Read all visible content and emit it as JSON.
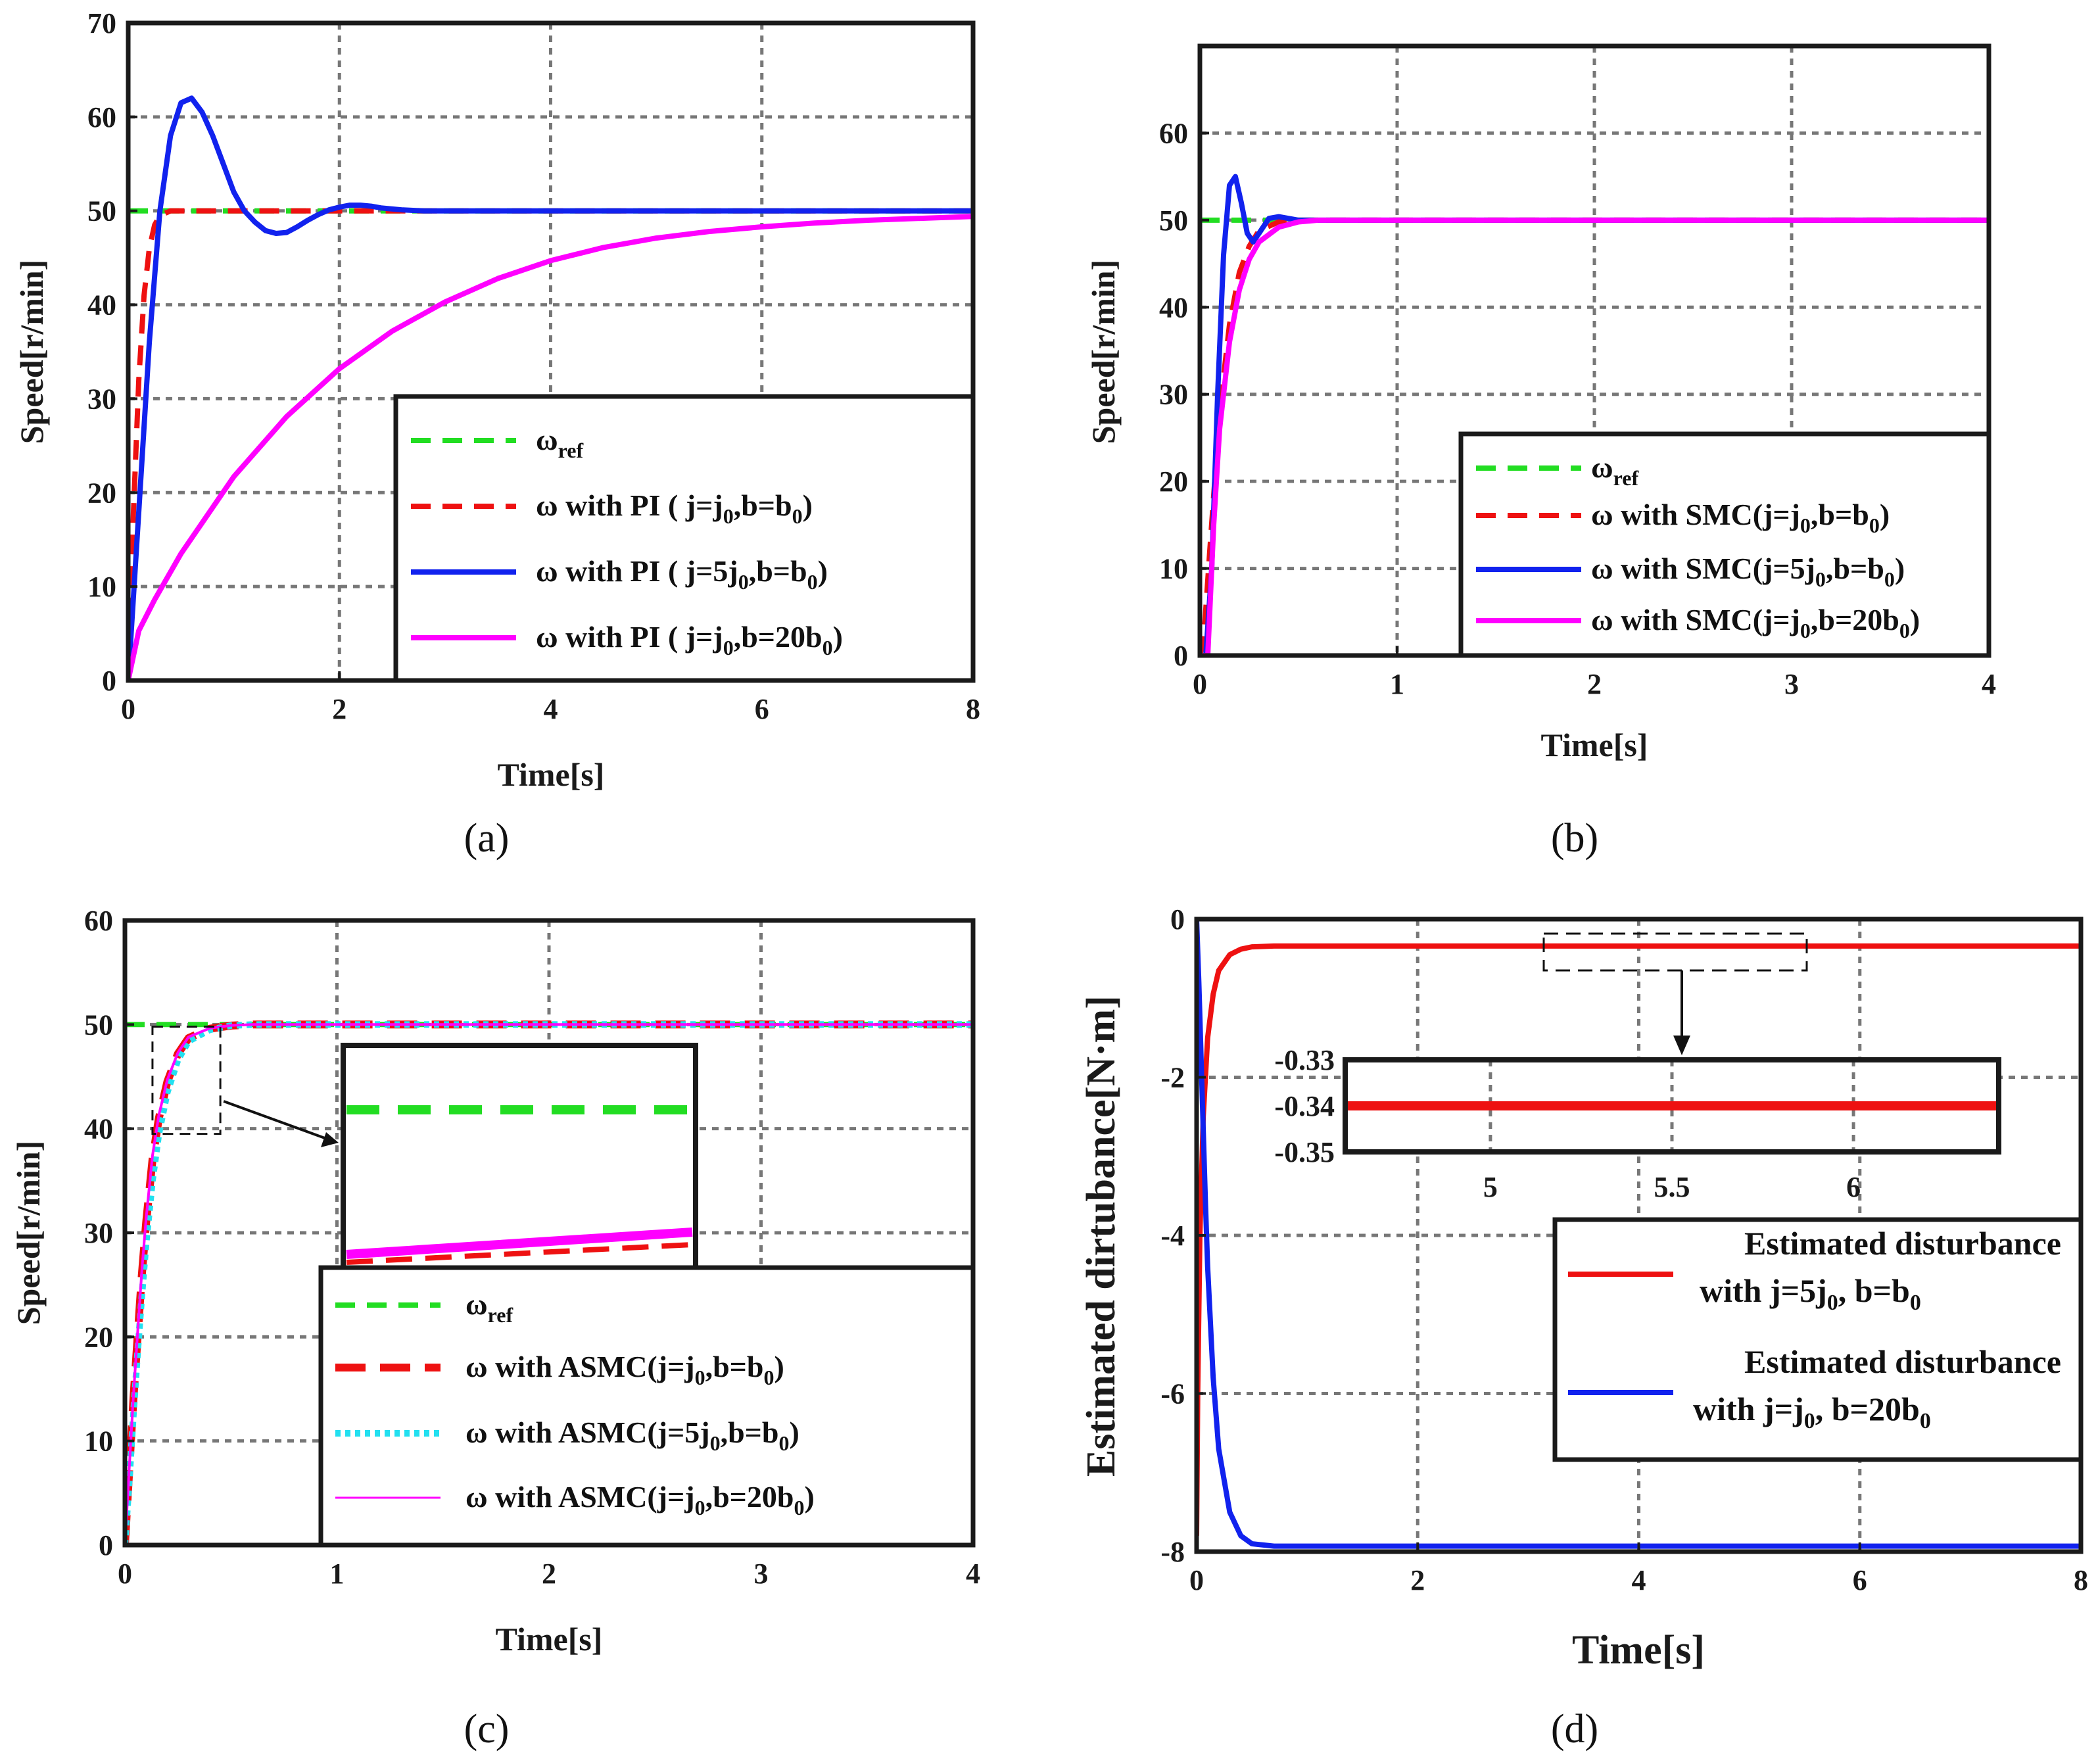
{
  "figure": {
    "captions": [
      "(a)",
      "(b)",
      "(c)",
      "(d)"
    ]
  },
  "colors": {
    "green": "#22dd22",
    "red": "#ee1111",
    "blue": "#1122ee",
    "magenta": "#ff00ff",
    "cyan": "#22e0f0",
    "axis": "#1a1a1a",
    "grid": "#777777"
  },
  "chart_data": [
    {
      "id": "a",
      "type": "line",
      "xlabel": "Time[s]",
      "ylabel": "Speed[r/min]",
      "xlim": [
        0,
        8
      ],
      "ylim": [
        0,
        70
      ],
      "xticks": [
        0,
        2,
        4,
        6,
        8
      ],
      "yticks": [
        0,
        10,
        20,
        30,
        40,
        50,
        60,
        70
      ],
      "grid": true,
      "legend_placement": "lower-right",
      "series": [
        {
          "name": "ω_ref",
          "legend": [
            "ω",
            "ref",
            ""
          ],
          "color": "#22dd22",
          "style": "dashed",
          "x": [
            0,
            8
          ],
          "y": [
            50,
            50
          ]
        },
        {
          "name": "ω with PI ( j=j0,b=b0)",
          "legend": [
            "ω with PI ( j=j",
            "0",
            ",b=b",
            "0",
            ")"
          ],
          "color": "#ee1111",
          "style": "dashed",
          "x": [
            0,
            0.05,
            0.1,
            0.15,
            0.2,
            0.25,
            0.3,
            0.4,
            0.5,
            0.6,
            1.0,
            8
          ],
          "y": [
            0,
            18,
            32,
            41,
            46,
            48.5,
            49.5,
            50,
            50,
            50,
            50,
            50
          ]
        },
        {
          "name": "ω with PI ( j=5j0,b=b0)",
          "legend": [
            "ω with PI ( j=5j",
            "0",
            ",b=b",
            "0",
            ")"
          ],
          "color": "#1122ee",
          "style": "solid",
          "x": [
            0,
            0.1,
            0.2,
            0.3,
            0.4,
            0.5,
            0.6,
            0.7,
            0.8,
            0.9,
            1.0,
            1.1,
            1.2,
            1.3,
            1.4,
            1.5,
            1.6,
            1.7,
            1.8,
            1.9,
            2.0,
            2.1,
            2.2,
            2.3,
            2.4,
            2.6,
            2.8,
            3.0,
            4.0,
            8
          ],
          "y": [
            0,
            18,
            36,
            50,
            58,
            61.5,
            62,
            60.5,
            58,
            55,
            52,
            50,
            48.8,
            47.9,
            47.6,
            47.7,
            48.3,
            49.0,
            49.6,
            50.1,
            50.4,
            50.6,
            50.6,
            50.5,
            50.3,
            50.1,
            50.0,
            50.0,
            50.0,
            50.0
          ]
        },
        {
          "name": "ω with PI ( j=j0,b=20b0)",
          "legend": [
            "ω with PI ( j=j",
            "0",
            ",b=20b",
            "0",
            ")"
          ],
          "color": "#ff00ff",
          "style": "solid",
          "x": [
            0,
            0.1,
            0.25,
            0.5,
            1.0,
            1.5,
            2.0,
            2.5,
            3.0,
            3.5,
            4.0,
            4.5,
            5.0,
            5.5,
            6.0,
            6.5,
            7.0,
            7.5,
            8.0
          ],
          "y": [
            0,
            5.3,
            8.6,
            13.5,
            21.7,
            28.1,
            33.2,
            37.2,
            40.3,
            42.8,
            44.7,
            46.1,
            47.1,
            47.8,
            48.3,
            48.7,
            49.0,
            49.2,
            49.4
          ]
        }
      ]
    },
    {
      "id": "b",
      "type": "line",
      "xlabel": "Time[s]",
      "ylabel": "Speed[r/min]",
      "xlim": [
        0,
        4
      ],
      "ylim": [
        0,
        70
      ],
      "xticks": [
        0,
        1,
        2,
        3,
        4
      ],
      "yticks": [
        0,
        10,
        20,
        30,
        40,
        50,
        60
      ],
      "grid": true,
      "legend_placement": "lower-right",
      "series": [
        {
          "name": "ω_ref",
          "legend": [
            "ω",
            "ref",
            ""
          ],
          "color": "#22dd22",
          "style": "dashed",
          "x": [
            0,
            4
          ],
          "y": [
            50,
            50
          ]
        },
        {
          "name": "ω with SMC(j=j0,b=b0)",
          "legend": [
            "ω with SMC(j=j",
            "0",
            ",b=b",
            "0",
            ")"
          ],
          "color": "#ee1111",
          "style": "dashed",
          "x": [
            0,
            0.02,
            0.05,
            0.1,
            0.15,
            0.2,
            0.25,
            0.3,
            0.4,
            0.5,
            4
          ],
          "y": [
            0,
            2,
            12,
            28,
            38,
            44,
            47,
            48.8,
            49.8,
            50,
            50
          ]
        },
        {
          "name": "ω with SMC(j=5j0,b=b0)",
          "legend": [
            "ω with SMC(j=5j",
            "0",
            ",b=b",
            "0",
            ")"
          ],
          "color": "#1122ee",
          "style": "solid",
          "x": [
            0,
            0.03,
            0.06,
            0.09,
            0.12,
            0.15,
            0.18,
            0.21,
            0.24,
            0.27,
            0.3,
            0.35,
            0.4,
            0.5,
            4
          ],
          "y": [
            0,
            0,
            10,
            30,
            46,
            54,
            55,
            52,
            48.5,
            47.5,
            48.5,
            50.2,
            50.4,
            50,
            50
          ]
        },
        {
          "name": "ω with SMC(j=j0,b=20b0)",
          "legend": [
            "ω with SMC(j=j",
            "0",
            ",b=20b",
            "0",
            ")"
          ],
          "color": "#ff00ff",
          "style": "solid",
          "x": [
            0,
            0.04,
            0.07,
            0.1,
            0.15,
            0.2,
            0.25,
            0.3,
            0.4,
            0.5,
            0.6,
            4
          ],
          "y": [
            0,
            0,
            15,
            26,
            36,
            42,
            45.5,
            47.5,
            49.2,
            49.8,
            50,
            50
          ]
        }
      ]
    },
    {
      "id": "c",
      "type": "line",
      "xlabel": "Time[s]",
      "ylabel": "Speed[r/min]",
      "xlim": [
        0,
        4
      ],
      "ylim": [
        0,
        60
      ],
      "xticks": [
        0,
        1,
        2,
        3,
        4
      ],
      "yticks": [
        0,
        10,
        20,
        30,
        40,
        50,
        60
      ],
      "grid": true,
      "legend_placement": "lower-right",
      "zoom_region": {
        "x": [
          0.13,
          0.45
        ],
        "y": [
          39.5,
          49.8
        ]
      },
      "series": [
        {
          "name": "ω_ref",
          "legend": [
            "ω",
            "ref",
            ""
          ],
          "color": "#22dd22",
          "style": "dashed",
          "x": [
            0,
            4
          ],
          "y": [
            50,
            50
          ]
        },
        {
          "name": "ω with ASMC(j=j0,b=b0)",
          "legend": [
            "ω with ASMC(j=j",
            "0",
            ",b=b",
            "0",
            ")"
          ],
          "color": "#ee1111",
          "style": "bold-dashed",
          "x": [
            0,
            0.02,
            0.04,
            0.06,
            0.08,
            0.1,
            0.13,
            0.16,
            0.2,
            0.25,
            0.3,
            0.4,
            0.5,
            0.6,
            4
          ],
          "y": [
            0,
            7,
            14,
            20,
            26,
            31,
            37,
            41,
            44.5,
            47.2,
            48.7,
            49.6,
            49.9,
            50,
            50
          ]
        },
        {
          "name": "ω with ASMC(j=5j0,b=b0)",
          "legend": [
            "ω with ASMC(j=5j",
            "0",
            ",b=b",
            "0",
            ")"
          ],
          "color": "#22e0f0",
          "style": "dotted",
          "x": [
            0,
            0.02,
            0.04,
            0.06,
            0.08,
            0.1,
            0.13,
            0.16,
            0.2,
            0.25,
            0.3,
            0.4,
            0.5,
            0.6,
            4
          ],
          "y": [
            0,
            6,
            12.5,
            18.5,
            24,
            29,
            35,
            39.5,
            43.5,
            46.6,
            48.4,
            49.5,
            49.9,
            50,
            50
          ]
        },
        {
          "name": "ω with ASMC(j=j0,b=20b0)",
          "legend": [
            "ω with ASMC(j=j",
            "0",
            ",b=20b",
            "0",
            ")"
          ],
          "color": "#ff00ff",
          "style": "thin",
          "x": [
            0,
            0.02,
            0.04,
            0.06,
            0.08,
            0.1,
            0.13,
            0.16,
            0.2,
            0.25,
            0.3,
            0.4,
            0.5,
            0.6,
            4
          ],
          "y": [
            0,
            7.2,
            14.3,
            20.4,
            26.4,
            31.4,
            37.4,
            41.3,
            44.7,
            47.3,
            48.8,
            49.65,
            49.92,
            50,
            50
          ]
        }
      ],
      "inset": {
        "xlim": [
          0.13,
          0.45
        ],
        "ylim": [
          39.5,
          49.8
        ],
        "series_y_ref": 48.8
      }
    },
    {
      "id": "d",
      "type": "line",
      "xlabel": "Time[s]",
      "ylabel": "Estimated dirtubance[N·m]",
      "xlim": [
        0,
        8
      ],
      "ylim": [
        -8,
        0
      ],
      "xticks": [
        0,
        2,
        4,
        6,
        8
      ],
      "yticks": [
        0,
        -2,
        -4,
        -6,
        -8
      ],
      "grid": true,
      "legend_placement": "lower-right",
      "zoom_region": {
        "x": [
          3.15,
          5.5
        ],
        "y": [
          -0.15,
          -0.6
        ]
      },
      "series": [
        {
          "name": "Estimated disturbance with j=5j0, b=b0",
          "legend1": [
            "Estimated disturbance"
          ],
          "legend2": [
            " with j=5j",
            "0",
            ", b=b",
            "0",
            ""
          ],
          "color": "#ee1111",
          "style": "solid",
          "x": [
            0,
            0.01,
            0.03,
            0.06,
            0.1,
            0.15,
            0.2,
            0.3,
            0.4,
            0.5,
            0.7,
            1.0,
            8
          ],
          "y": [
            -7.8,
            -6.0,
            -4.0,
            -2.5,
            -1.5,
            -0.95,
            -0.65,
            -0.45,
            -0.38,
            -0.35,
            -0.34,
            -0.34,
            -0.34
          ]
        },
        {
          "name": "Estimated disturbance with j=j0, b=20b0",
          "legend1": [
            "Estimated disturbance"
          ],
          "legend2": [
            "with j=j",
            "0",
            ", b=20b",
            "0",
            ""
          ],
          "color": "#1122ee",
          "style": "solid",
          "x": [
            0,
            0.02,
            0.05,
            0.08,
            0.1,
            0.15,
            0.2,
            0.3,
            0.4,
            0.5,
            0.7,
            1.0,
            8
          ],
          "y": [
            0,
            -0.8,
            -2.2,
            -3.6,
            -4.4,
            -5.8,
            -6.7,
            -7.5,
            -7.8,
            -7.9,
            -7.93,
            -7.93,
            -7.93
          ]
        }
      ],
      "inset": {
        "xlim": [
          4.6,
          6.4
        ],
        "ylim": [
          -0.35,
          -0.33
        ],
        "xticks": [
          5,
          5.5,
          6
        ],
        "yticks": [
          -0.33,
          -0.34,
          -0.35
        ],
        "value": -0.34
      }
    }
  ]
}
